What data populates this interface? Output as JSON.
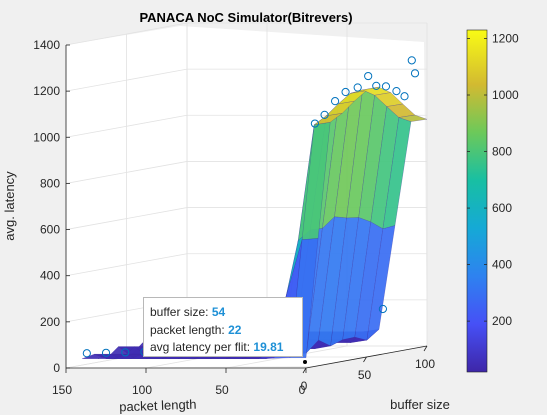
{
  "chart_data": {
    "type": "surface",
    "title": "PANACA NoC Simulator(Bitrevers)",
    "xlabel": "packet length",
    "ylabel": "buffer size",
    "zlabel": "avg. latency",
    "xlim": [
      0,
      150
    ],
    "ylim": [
      0,
      100
    ],
    "zlim": [
      0,
      1400
    ],
    "xticks": [
      "150",
      "100",
      "50",
      "0"
    ],
    "yticks": [
      "0",
      "50",
      "100"
    ],
    "zticks": [
      "0",
      "200",
      "400",
      "600",
      "800",
      "1000",
      "1200",
      "1400"
    ],
    "colorbar": {
      "ticks": [
        "200",
        "400",
        "600",
        "800",
        "1000",
        "1200"
      ],
      "range": [
        20,
        1230
      ],
      "colormap": "parula"
    },
    "surface": {
      "packet_length": [
        0,
        10,
        20,
        30,
        40,
        50,
        60,
        70,
        80,
        90,
        100,
        110,
        120,
        130,
        140
      ],
      "buffer_size": [
        0,
        10,
        20,
        30,
        40,
        50,
        60,
        70,
        80,
        90,
        100
      ],
      "high_region_buffer_min": 10,
      "high_region_packet_max": 20,
      "peak_markers": [
        {
          "packet_length": 2,
          "buffer_size": 10,
          "latency": 1050
        },
        {
          "packet_length": 2,
          "buffer_size": 18,
          "latency": 1080
        },
        {
          "packet_length": 3,
          "buffer_size": 28,
          "latency": 1130
        },
        {
          "packet_length": 4,
          "buffer_size": 38,
          "latency": 1160
        },
        {
          "packet_length": 4,
          "buffer_size": 48,
          "latency": 1170
        },
        {
          "packet_length": 5,
          "buffer_size": 58,
          "latency": 1210
        },
        {
          "packet_length": 6,
          "buffer_size": 66,
          "latency": 1160
        },
        {
          "packet_length": 6,
          "buffer_size": 74,
          "latency": 1150
        },
        {
          "packet_length": 7,
          "buffer_size": 84,
          "latency": 1120
        },
        {
          "packet_length": 8,
          "buffer_size": 92,
          "latency": 1090
        },
        {
          "packet_length": 8,
          "buffer_size": 98,
          "latency": 1240
        },
        {
          "packet_length": 9,
          "buffer_size": 102,
          "latency": 1180
        }
      ],
      "low_markers": [
        {
          "packet_length": 140,
          "buffer_size": 4,
          "latency": 60
        },
        {
          "packet_length": 128,
          "buffer_size": 4,
          "latency": 62
        },
        {
          "packet_length": 116,
          "buffer_size": 4,
          "latency": 64
        },
        {
          "packet_length": 104,
          "buffer_size": 4,
          "latency": 66
        },
        {
          "packet_length": 20,
          "buffer_size": 90,
          "latency": 170
        }
      ]
    },
    "datatip": {
      "buffer_size": {
        "label": "buffer size:",
        "value": "54"
      },
      "packet_length": {
        "label": "packet length:",
        "value": "22"
      },
      "avg_latency_per_flit": {
        "label": "avg latency per flit:",
        "value": "19.81"
      }
    }
  }
}
